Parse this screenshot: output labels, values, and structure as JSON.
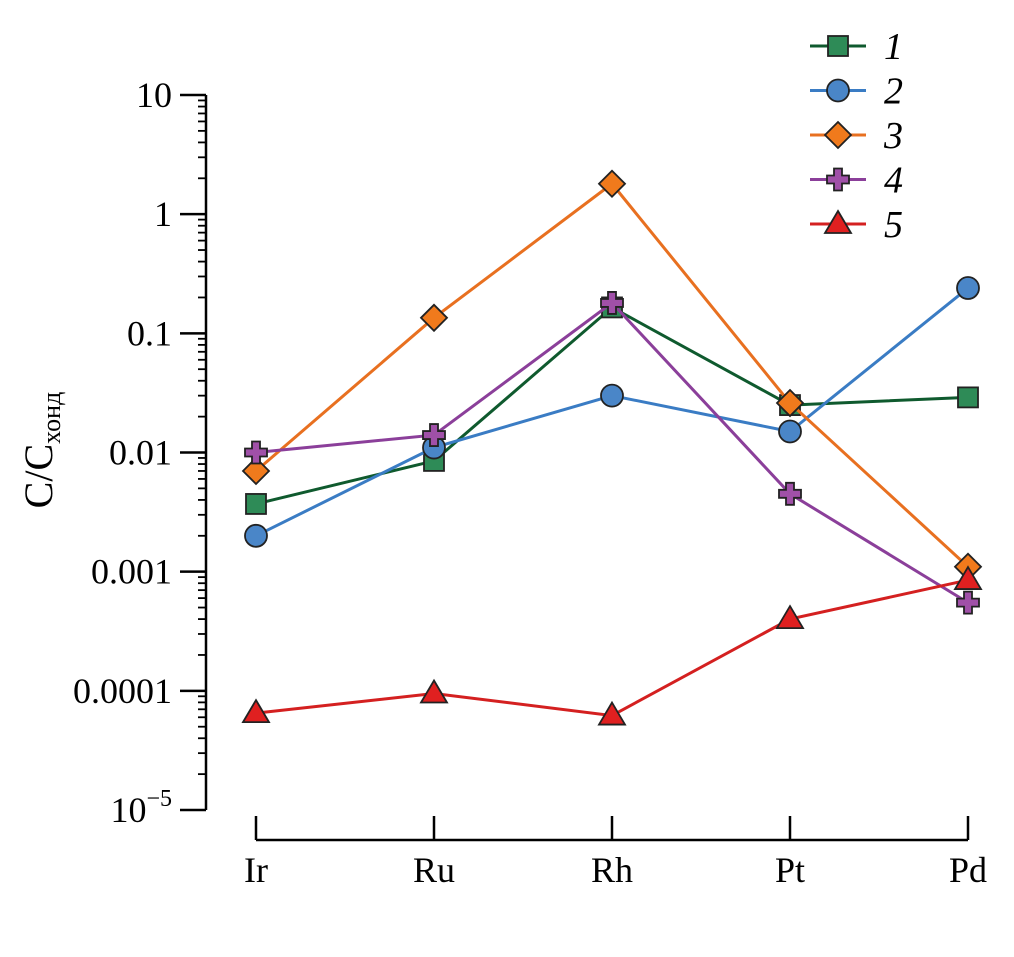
{
  "chart_data": {
    "type": "line",
    "y_scale": "log",
    "ylabel": "C/C",
    "ylabel_sub": "хонд",
    "ylim": [
      1e-05,
      10
    ],
    "yticks": [
      {
        "value": 10,
        "label": "10"
      },
      {
        "value": 1,
        "label": "1"
      },
      {
        "value": 0.1,
        "label": "0.1"
      },
      {
        "value": 0.01,
        "label": "0.01"
      },
      {
        "value": 0.001,
        "label": "0.001"
      },
      {
        "value": 0.0001,
        "label": "0.0001"
      },
      {
        "value": 1e-05,
        "label": "10",
        "sup": "−5"
      }
    ],
    "categories": [
      "Ir",
      "Ru",
      "Rh",
      "Pt",
      "Pd"
    ],
    "grid": false,
    "legend_position": "top-right",
    "series": [
      {
        "name": "1",
        "color": "#2e8b57",
        "line_color": "#0f5a2e",
        "marker": "square",
        "values": [
          0.0037,
          0.0085,
          0.165,
          0.025,
          0.029
        ]
      },
      {
        "name": "2",
        "color": "#4a86c8",
        "line_color": "#3a7cc4",
        "marker": "circle",
        "values": [
          0.002,
          0.011,
          0.03,
          0.015,
          0.24
        ]
      },
      {
        "name": "3",
        "color": "#f07a1c",
        "line_color": "#e87020",
        "marker": "diamond",
        "values": [
          0.007,
          0.135,
          1.8,
          0.026,
          0.0011
        ]
      },
      {
        "name": "4",
        "color": "#a050a8",
        "line_color": "#8b3f9a",
        "marker": "plus",
        "values": [
          0.01,
          0.014,
          0.18,
          0.0045,
          0.00055
        ]
      },
      {
        "name": "5",
        "color": "#e02020",
        "line_color": "#d42020",
        "marker": "triangle",
        "values": [
          6.5e-05,
          9.5e-05,
          6.2e-05,
          0.0004,
          0.00085
        ]
      }
    ]
  }
}
